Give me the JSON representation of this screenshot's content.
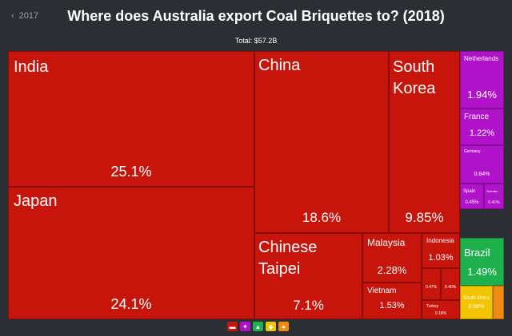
{
  "header": {
    "prev_year": "2017",
    "title": "Where does Australia export Coal Briquettes to? (2018)",
    "total": "Total: $57.2B"
  },
  "colors": {
    "asia": "#c8150c",
    "europe": "#b012c9",
    "south_america": "#1fb04e",
    "africa": "#f3c500",
    "oceania": "#ef8a12"
  },
  "legend": [
    {
      "name": "asia-legend-icon",
      "color": "#c8150c",
      "glyph": "▬"
    },
    {
      "name": "europe-legend-icon",
      "color": "#b012c9",
      "glyph": "✦"
    },
    {
      "name": "africa-legend-icon",
      "color": "#1fb04e",
      "glyph": "▲"
    },
    {
      "name": "north-america-legend-icon",
      "color": "#f3c500",
      "glyph": "◆"
    },
    {
      "name": "oceania-legend-icon",
      "color": "#ef8a12",
      "glyph": "●"
    }
  ],
  "chart_data": {
    "type": "treemap",
    "title": "Where does Australia export Coal Briquettes to? (2018)",
    "total": "$57.2B",
    "items": [
      {
        "name": "India",
        "share": 25.1,
        "label": "25.1%",
        "group": "asia"
      },
      {
        "name": "Japan",
        "share": 24.1,
        "label": "24.1%",
        "group": "asia"
      },
      {
        "name": "China",
        "share": 18.6,
        "label": "18.6%",
        "group": "asia"
      },
      {
        "name": "South Korea",
        "share": 9.85,
        "label": "9.85%",
        "group": "asia"
      },
      {
        "name": "Chinese Taipei",
        "share": 7.1,
        "label": "7.1%",
        "group": "asia"
      },
      {
        "name": "Malaysia",
        "share": 2.28,
        "label": "2.28%",
        "group": "asia"
      },
      {
        "name": "Vietnam",
        "share": 1.53,
        "label": "1.53%",
        "group": "asia"
      },
      {
        "name": "Indonesia",
        "share": 1.03,
        "label": "1.03%",
        "group": "asia"
      },
      {
        "name": "",
        "share": 0.47,
        "label": "0.47%",
        "group": "asia"
      },
      {
        "name": "",
        "share": 0.4,
        "label": "0.40%",
        "group": "asia"
      },
      {
        "name": "Turkey",
        "share": 0.18,
        "label": "0.18%",
        "group": "asia"
      },
      {
        "name": "Netherlands",
        "share": 1.94,
        "label": "1.94%",
        "group": "europe"
      },
      {
        "name": "France",
        "share": 1.22,
        "label": "1.22%",
        "group": "europe"
      },
      {
        "name": "Germany",
        "share": 0.84,
        "label": "0.84%",
        "group": "europe"
      },
      {
        "name": "Spain",
        "share": 0.45,
        "label": "0.45%",
        "group": "europe"
      },
      {
        "name": "Sweden",
        "share": 0.41,
        "label": "0.41%",
        "group": "europe"
      },
      {
        "name": "Brazil",
        "share": 1.49,
        "label": "1.49%",
        "group": "south_america"
      },
      {
        "name": "South Africa",
        "share": 0.56,
        "label": "0.56%",
        "group": "africa"
      },
      {
        "name": "",
        "share": null,
        "label": "",
        "group": "oceania"
      }
    ]
  }
}
